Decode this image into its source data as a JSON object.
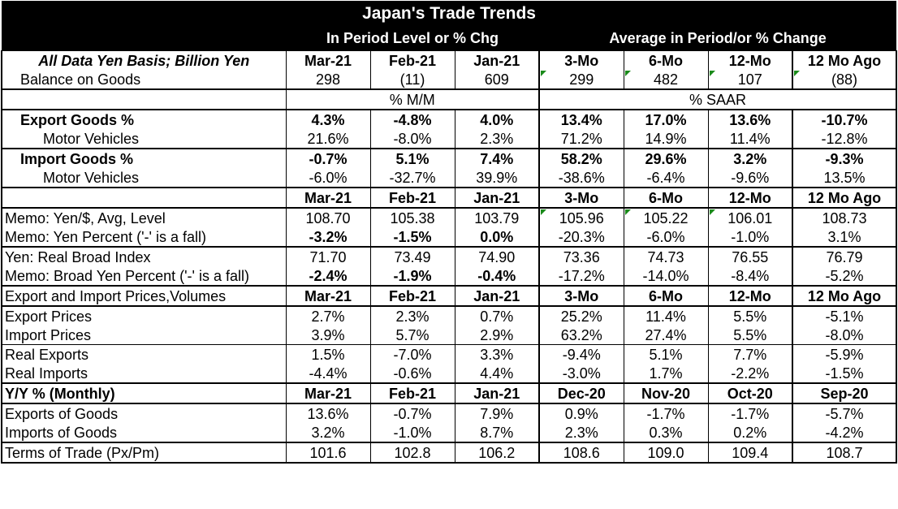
{
  "title": "Japan's Trade Trends",
  "group_left": "In Period Level or % Chg",
  "group_right": "Average in Period/or % Change",
  "header": {
    "label": "All Data Yen Basis; Billion Yen",
    "cols": [
      "Mar-21",
      "Feb-21",
      "Jan-21",
      "3-Mo",
      "6-Mo",
      "12-Mo",
      "12 Mo Ago"
    ]
  },
  "balance": {
    "label": "Balance on Goods",
    "values": [
      "298",
      "(11)",
      "609",
      "299",
      "482",
      "107",
      "(88)"
    ]
  },
  "unit_left": "% M/M",
  "unit_right": "% SAAR",
  "exports": {
    "label": "Export Goods %",
    "values": [
      "4.3%",
      "-4.8%",
      "4.0%",
      "13.4%",
      "17.0%",
      "13.6%",
      "-10.7%"
    ]
  },
  "exports_mv": {
    "label": "Motor Vehicles",
    "values": [
      "21.6%",
      "-8.0%",
      "2.3%",
      "71.2%",
      "14.9%",
      "11.4%",
      "-12.8%"
    ]
  },
  "imports": {
    "label": "Import Goods %",
    "values": [
      "-0.7%",
      "5.1%",
      "7.4%",
      "58.2%",
      "29.6%",
      "3.2%",
      "-9.3%"
    ]
  },
  "imports_mv": {
    "label": "Motor Vehicles",
    "values": [
      "-6.0%",
      "-32.7%",
      "39.9%",
      "-38.6%",
      "-6.4%",
      "-9.6%",
      "13.5%"
    ]
  },
  "header2": {
    "cols": [
      "Mar-21",
      "Feb-21",
      "Jan-21",
      "3-Mo",
      "6-Mo",
      "12-Mo",
      "12 Mo Ago"
    ]
  },
  "yen_level": {
    "label": "Memo: Yen/$, Avg, Level",
    "values": [
      "108.70",
      "105.38",
      "103.79",
      "105.96",
      "105.22",
      "106.01",
      "108.73"
    ]
  },
  "yen_pct": {
    "label": "Memo: Yen Percent ('-' is a fall)",
    "values": [
      "-3.2%",
      "-1.5%",
      "0.0%",
      "-20.3%",
      "-6.0%",
      "-1.0%",
      "3.1%"
    ]
  },
  "real_broad": {
    "label": "Yen: Real Broad Index",
    "values": [
      "71.70",
      "73.49",
      "74.90",
      "73.36",
      "74.73",
      "76.55",
      "76.79"
    ]
  },
  "broad_pct": {
    "label": "Memo: Broad Yen Percent ('-' is a fall)",
    "values": [
      "-2.4%",
      "-1.9%",
      "-0.4%",
      "-17.2%",
      "-14.0%",
      "-8.4%",
      "-5.2%"
    ]
  },
  "header3": {
    "label": "Export and Import Prices,Volumes",
    "cols": [
      "Mar-21",
      "Feb-21",
      "Jan-21",
      "3-Mo",
      "6-Mo",
      "12-Mo",
      "12 Mo Ago"
    ]
  },
  "export_prices": {
    "label": "Export Prices",
    "values": [
      "2.7%",
      "2.3%",
      "0.7%",
      "25.2%",
      "11.4%",
      "5.5%",
      "-5.1%"
    ]
  },
  "import_prices": {
    "label": "Import Prices",
    "values": [
      "3.9%",
      "5.7%",
      "2.9%",
      "63.2%",
      "27.4%",
      "5.5%",
      "-8.0%"
    ]
  },
  "real_exports": {
    "label": "Real Exports",
    "values": [
      "1.5%",
      "-7.0%",
      "3.3%",
      "-9.4%",
      "5.1%",
      "7.7%",
      "-5.9%"
    ]
  },
  "real_imports": {
    "label": "Real Imports",
    "values": [
      "-4.4%",
      "-0.6%",
      "4.4%",
      "-3.0%",
      "1.7%",
      "-2.2%",
      "-1.5%"
    ]
  },
  "header4": {
    "label": "Y/Y % (Monthly)",
    "cols": [
      "Mar-21",
      "Feb-21",
      "Jan-21",
      "Dec-20",
      "Nov-20",
      "Oct-20",
      "Sep-20"
    ]
  },
  "yy_exports": {
    "label": "Exports of Goods",
    "values": [
      "13.6%",
      "-0.7%",
      "7.9%",
      "0.9%",
      "-1.7%",
      "-1.7%",
      "-5.7%"
    ]
  },
  "yy_imports": {
    "label": "Imports of Goods",
    "values": [
      "3.2%",
      "-1.0%",
      "8.7%",
      "2.3%",
      "0.3%",
      "0.2%",
      "-4.2%"
    ]
  },
  "terms": {
    "label": "Terms of Trade (Px/Pm)",
    "values": [
      "101.6",
      "102.8",
      "106.2",
      "108.6",
      "109.0",
      "109.4",
      "108.7"
    ]
  },
  "colors": {
    "header_bg": "#000000",
    "header_text": "#ffffff",
    "flag_mark": "#1a8a1a"
  }
}
